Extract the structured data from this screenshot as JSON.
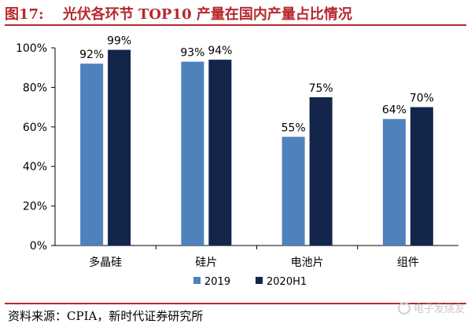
{
  "figure": {
    "number": "图17:",
    "title": "光伏各环节 TOP10 产量在国内产量占比情况"
  },
  "source": "资料来源：CPIA，新时代证券研究所",
  "watermark": "电子发烧友",
  "colors": {
    "title": "#b7282e",
    "series_2019": "#4f81bd",
    "series_2020H1": "#13254b",
    "axis": "#000000"
  },
  "chart_data": {
    "type": "bar",
    "title": "",
    "xlabel": "",
    "ylabel": "",
    "categories": [
      "多晶硅",
      "硅片",
      "电池片",
      "组件"
    ],
    "series": [
      {
        "name": "2019",
        "values": [
          92,
          93,
          55,
          64
        ],
        "labels": [
          "92%",
          "93%",
          "55%",
          "64%"
        ]
      },
      {
        "name": "2020H1",
        "values": [
          99,
          94,
          75,
          70
        ],
        "labels": [
          "99%",
          "94%",
          "75%",
          "70%"
        ]
      }
    ],
    "ylim": [
      0,
      100
    ],
    "yticks": [
      0,
      20,
      40,
      60,
      80,
      100
    ],
    "ytick_labels": [
      "0%",
      "20%",
      "40%",
      "60%",
      "80%",
      "100%"
    ],
    "grid": false,
    "legend": "bottom"
  }
}
